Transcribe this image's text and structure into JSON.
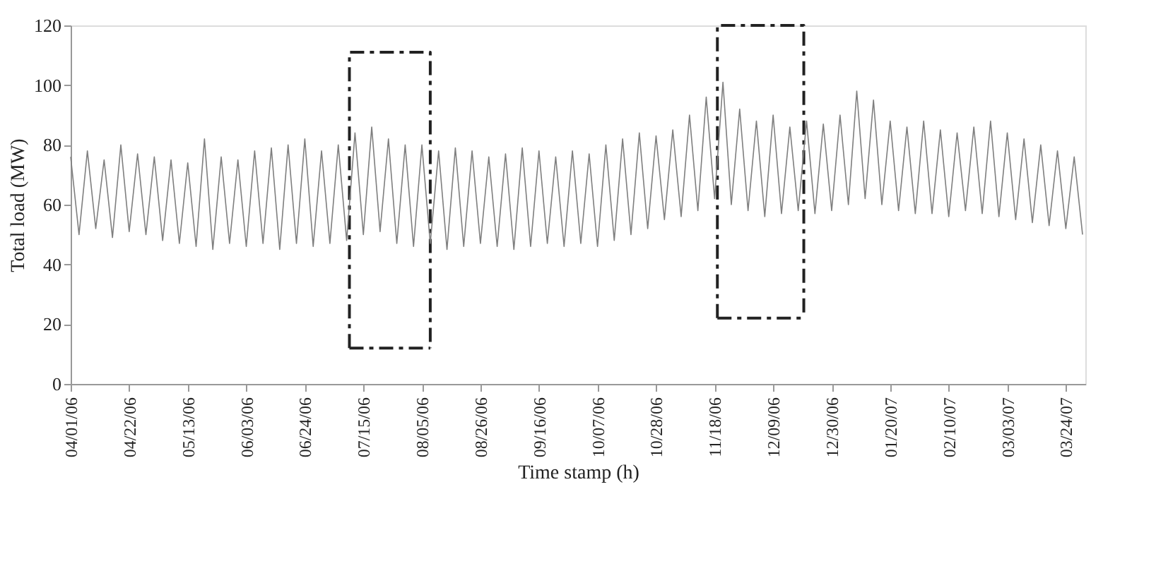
{
  "chart_data": {
    "type": "line",
    "xlabel": "Time stamp (h)",
    "ylabel": "Total load (MW)",
    "xlim": [
      "2006-04-01",
      "2007-03-31"
    ],
    "ylim": [
      0,
      120
    ],
    "yticks": [
      0,
      20,
      40,
      60,
      80,
      100,
      120
    ],
    "xticks": [
      {
        "value": "2006-04-01",
        "label": "04/01/06"
      },
      {
        "value": "2006-04-22",
        "label": "04/22/06"
      },
      {
        "value": "2006-05-13",
        "label": "05/13/06"
      },
      {
        "value": "2006-06-03",
        "label": "06/03/06"
      },
      {
        "value": "2006-06-24",
        "label": "06/24/06"
      },
      {
        "value": "2006-07-15",
        "label": "07/15/06"
      },
      {
        "value": "2006-08-05",
        "label": "08/05/06"
      },
      {
        "value": "2006-08-26",
        "label": "08/26/06"
      },
      {
        "value": "2006-09-16",
        "label": "09/16/06"
      },
      {
        "value": "2006-10-07",
        "label": "10/07/06"
      },
      {
        "value": "2006-10-28",
        "label": "10/28/06"
      },
      {
        "value": "2006-11-18",
        "label": "11/18/06"
      },
      {
        "value": "2006-12-09",
        "label": "12/09/06"
      },
      {
        "value": "2006-12-30",
        "label": "12/30/06"
      },
      {
        "value": "2007-01-20",
        "label": "01/20/07"
      },
      {
        "value": "2007-02-10",
        "label": "02/10/07"
      },
      {
        "value": "2007-03-03",
        "label": "03/03/07"
      },
      {
        "value": "2007-03-24",
        "label": "03/24/07"
      }
    ],
    "grid": false,
    "marker": "none",
    "series": [
      {
        "color": "#7f7f7f",
        "line_style": "solid",
        "x": [
          "2006-04-01",
          "2006-04-04",
          "2006-04-07",
          "2006-04-10",
          "2006-04-13",
          "2006-04-16",
          "2006-04-19",
          "2006-04-22",
          "2006-04-25",
          "2006-04-28",
          "2006-05-01",
          "2006-05-04",
          "2006-05-07",
          "2006-05-10",
          "2006-05-13",
          "2006-05-16",
          "2006-05-19",
          "2006-05-22",
          "2006-05-25",
          "2006-05-28",
          "2006-05-31",
          "2006-06-03",
          "2006-06-06",
          "2006-06-09",
          "2006-06-12",
          "2006-06-15",
          "2006-06-18",
          "2006-06-21",
          "2006-06-24",
          "2006-06-27",
          "2006-06-30",
          "2006-07-03",
          "2006-07-06",
          "2006-07-09",
          "2006-07-12",
          "2006-07-15",
          "2006-07-18",
          "2006-07-21",
          "2006-07-24",
          "2006-07-27",
          "2006-07-30",
          "2006-08-02",
          "2006-08-05",
          "2006-08-08",
          "2006-08-11",
          "2006-08-14",
          "2006-08-17",
          "2006-08-20",
          "2006-08-23",
          "2006-08-26",
          "2006-08-29",
          "2006-09-01",
          "2006-09-04",
          "2006-09-07",
          "2006-09-10",
          "2006-09-13",
          "2006-09-16",
          "2006-09-19",
          "2006-09-22",
          "2006-09-25",
          "2006-09-28",
          "2006-10-01",
          "2006-10-04",
          "2006-10-07",
          "2006-10-10",
          "2006-10-13",
          "2006-10-16",
          "2006-10-19",
          "2006-10-22",
          "2006-10-25",
          "2006-10-28",
          "2006-10-31",
          "2006-11-03",
          "2006-11-06",
          "2006-11-09",
          "2006-11-12",
          "2006-11-15",
          "2006-11-18",
          "2006-11-21",
          "2006-11-24",
          "2006-11-27",
          "2006-11-30",
          "2006-12-03",
          "2006-12-06",
          "2006-12-09",
          "2006-12-12",
          "2006-12-15",
          "2006-12-18",
          "2006-12-21",
          "2006-12-24",
          "2006-12-27",
          "2006-12-30",
          "2007-01-02",
          "2007-01-05",
          "2007-01-08",
          "2007-01-11",
          "2007-01-14",
          "2007-01-17",
          "2007-01-20",
          "2007-01-23",
          "2007-01-26",
          "2007-01-29",
          "2007-02-01",
          "2007-02-04",
          "2007-02-07",
          "2007-02-10",
          "2007-02-13",
          "2007-02-16",
          "2007-02-19",
          "2007-02-22",
          "2007-02-25",
          "2007-02-28",
          "2007-03-03",
          "2007-03-06",
          "2007-03-09",
          "2007-03-12",
          "2007-03-15",
          "2007-03-18",
          "2007-03-21",
          "2007-03-24",
          "2007-03-27",
          "2007-03-30"
        ],
        "values": [
          76,
          50,
          78,
          52,
          75,
          49,
          80,
          51,
          77,
          50,
          76,
          48,
          75,
          47,
          74,
          46,
          82,
          45,
          76,
          47,
          75,
          46,
          78,
          47,
          79,
          45,
          80,
          47,
          82,
          46,
          78,
          47,
          80,
          48,
          84,
          50,
          86,
          51,
          82,
          47,
          80,
          46,
          80,
          47,
          78,
          45,
          79,
          46,
          78,
          47,
          76,
          46,
          77,
          45,
          79,
          46,
          78,
          47,
          76,
          46,
          78,
          47,
          77,
          46,
          80,
          48,
          82,
          50,
          84,
          52,
          83,
          55,
          85,
          56,
          90,
          58,
          96,
          62,
          101,
          60,
          92,
          58,
          88,
          56,
          90,
          57,
          86,
          58,
          88,
          57,
          87,
          58,
          90,
          60,
          98,
          62,
          95,
          60,
          88,
          58,
          86,
          57,
          88,
          57,
          85,
          56,
          84,
          58,
          86,
          57,
          88,
          56,
          84,
          55,
          82,
          54,
          80,
          53,
          78,
          52,
          76,
          50
        ]
      },
      {
        "color": "#222222",
        "line_style": "dashed",
        "x": [
          "2006-07-10",
          "2006-07-10",
          "2006-08-08",
          "2006-08-08"
        ],
        "values": [
          12,
          111,
          111,
          12
        ]
      },
      {
        "color": "#222222",
        "line_style": "dashed",
        "x": [
          "2006-07-10",
          "2006-08-08"
        ],
        "values": [
          12,
          12
        ]
      },
      {
        "color": "#222222",
        "line_style": "dashed",
        "x": [
          "2006-11-19",
          "2006-11-19",
          "2006-12-20",
          "2006-12-20"
        ],
        "values": [
          22,
          120,
          120,
          22
        ]
      },
      {
        "color": "#222222",
        "line_style": "dashed",
        "x": [
          "2006-11-19",
          "2006-12-20"
        ],
        "values": [
          22,
          22
        ]
      }
    ]
  }
}
